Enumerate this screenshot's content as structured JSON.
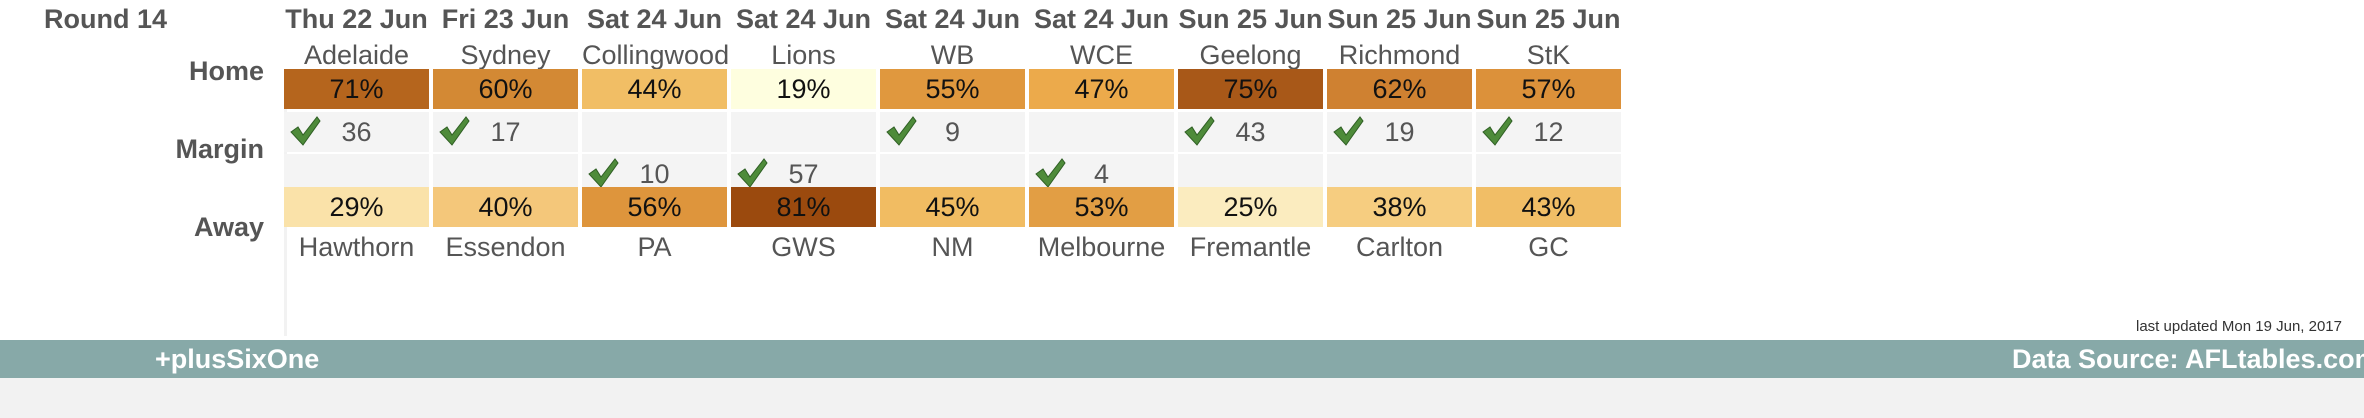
{
  "round_title": "Round 14",
  "row_labels": {
    "home": "Home",
    "margin": "Margin",
    "away": "Away"
  },
  "matches": [
    {
      "date": "Thu 22 Jun",
      "home": "Adelaide",
      "away": "Hawthorn",
      "home_pct": "71%",
      "away_pct": "29%",
      "home_color": "#b5651d",
      "away_color": "#fae2a9",
      "margin_home": "36",
      "margin_away": "",
      "tick_home": true,
      "tick_away": false
    },
    {
      "date": "Fri 23 Jun",
      "home": "Sydney",
      "away": "Essendon",
      "home_pct": "60%",
      "away_pct": "40%",
      "home_color": "#d38934",
      "away_color": "#f4c77a",
      "margin_home": "17",
      "margin_away": "",
      "tick_home": true,
      "tick_away": false
    },
    {
      "date": "Sat 24 Jun",
      "home": "Collingwood",
      "away": "PA",
      "home_pct": "44%",
      "away_pct": "56%",
      "home_color": "#f1be65",
      "away_color": "#de953c",
      "margin_home": "",
      "margin_away": "10",
      "tick_home": false,
      "tick_away": true
    },
    {
      "date": "Sat 24 Jun",
      "home": "Lions",
      "away": "GWS",
      "home_pct": "19%",
      "away_pct": "81%",
      "home_color": "#fefedf",
      "away_color": "#9b4a0e",
      "margin_home": "",
      "margin_away": "57",
      "tick_home": false,
      "tick_away": true
    },
    {
      "date": "Sat 24 Jun",
      "home": "WB",
      "away": "NM",
      "home_pct": "55%",
      "away_pct": "45%",
      "home_color": "#e0983e",
      "away_color": "#f1bc62",
      "margin_home": "9",
      "margin_away": "",
      "tick_home": true,
      "tick_away": false
    },
    {
      "date": "Sat 24 Jun",
      "home": "WCE",
      "away": "Melbourne",
      "home_pct": "47%",
      "away_pct": "53%",
      "home_color": "#ecaa4b",
      "away_color": "#e29e44",
      "margin_home": "",
      "margin_away": "4",
      "tick_home": false,
      "tick_away": true
    },
    {
      "date": "Sun 25 Jun",
      "home": "Geelong",
      "away": "Fremantle",
      "home_pct": "75%",
      "away_pct": "25%",
      "home_color": "#a85818",
      "away_color": "#fbecbf",
      "margin_home": "43",
      "margin_away": "",
      "tick_home": true,
      "tick_away": false
    },
    {
      "date": "Sun 25 Jun",
      "home": "Richmond",
      "away": "Carlton",
      "home_pct": "62%",
      "away_pct": "38%",
      "home_color": "#cf8131",
      "away_color": "#f6cd80",
      "margin_home": "19",
      "margin_away": "",
      "tick_home": true,
      "tick_away": false
    },
    {
      "date": "Sun 25 Jun",
      "home": "StK",
      "away": "GC",
      "home_pct": "57%",
      "away_pct": "43%",
      "home_color": "#dc913a",
      "away_color": "#f1be66",
      "margin_home": "12",
      "margin_away": "",
      "tick_home": true,
      "tick_away": false
    }
  ],
  "last_updated": "last updated Mon 19 Jun, 2017",
  "footer": {
    "brand": "+plusSixOne",
    "source": "Data Source: AFLtables.com",
    "bar_color": "#87a9a8"
  },
  "icons": {
    "tick": "check-mark-icon"
  }
}
